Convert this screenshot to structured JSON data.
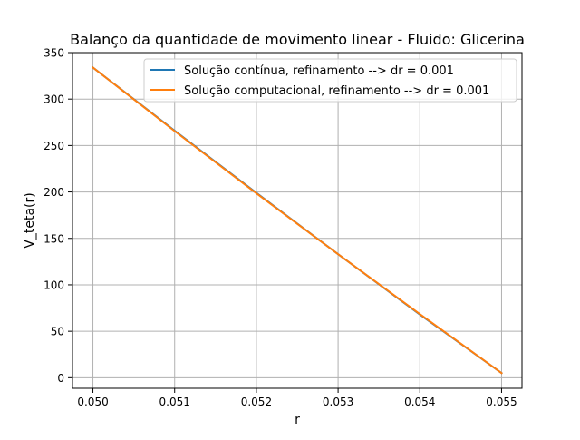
{
  "chart_data": {
    "type": "line",
    "title": "Balanço da quantidade de movimento linear - Fluido: Glicerina",
    "xlabel": "r",
    "ylabel": "V_teta(r)",
    "xlim": [
      0.04975,
      0.05525
    ],
    "ylim": [
      -11.4,
      350
    ],
    "grid": true,
    "legend_position": "top-right",
    "x_ticks": [
      {
        "value": 0.05,
        "label": "0.050"
      },
      {
        "value": 0.051,
        "label": "0.051"
      },
      {
        "value": 0.052,
        "label": "0.052"
      },
      {
        "value": 0.053,
        "label": "0.053"
      },
      {
        "value": 0.054,
        "label": "0.054"
      },
      {
        "value": 0.055,
        "label": "0.055"
      }
    ],
    "y_ticks": [
      {
        "value": 0,
        "label": "0"
      },
      {
        "value": 50,
        "label": "50"
      },
      {
        "value": 100,
        "label": "100"
      },
      {
        "value": 150,
        "label": "150"
      },
      {
        "value": 200,
        "label": "200"
      },
      {
        "value": 250,
        "label": "250"
      },
      {
        "value": 300,
        "label": "300"
      },
      {
        "value": 350,
        "label": "350"
      }
    ],
    "series": [
      {
        "name": "Solução contínua, refinamento --> dr = 0.001",
        "color": "#1f77b4",
        "x": [
          0.05,
          0.051,
          0.052,
          0.053,
          0.054,
          0.055
        ],
        "y": [
          334,
          266,
          199,
          133,
          68,
          5
        ]
      },
      {
        "name": "Solução computacional, refinamento --> dr = 0.001",
        "color": "#ff7f0e",
        "x": [
          0.05,
          0.051,
          0.052,
          0.053,
          0.054,
          0.055
        ],
        "y": [
          334,
          265.5,
          198.5,
          133,
          68.5,
          5
        ]
      }
    ]
  },
  "colors": {
    "grid": "#b0b0b0",
    "axes": "#000000",
    "legend_border": "#cccccc"
  }
}
